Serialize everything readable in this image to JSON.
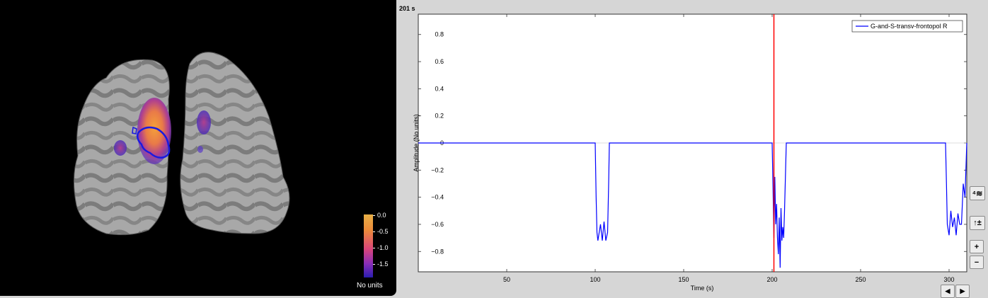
{
  "brain_view": {
    "colorbar": {
      "ticks": [
        "0.0",
        "-0.5",
        "-1.0",
        "-1.5"
      ],
      "units": "No units",
      "colors": [
        "#e8b046",
        "#ec8a3a",
        "#d9457a",
        "#8a2eb8",
        "#2a1eb0"
      ]
    }
  },
  "time_panel": {
    "current_time_label": "201 s"
  },
  "chart_data": {
    "type": "line",
    "xlabel": "Time (s)",
    "ylabel": "Amplitude (No units)",
    "xlim": [
      0,
      310
    ],
    "ylim": [
      -0.95,
      0.95
    ],
    "xticks": [
      50,
      100,
      150,
      200,
      250,
      300
    ],
    "yticks": [
      -0.8,
      -0.6,
      -0.4,
      -0.2,
      0,
      0.2,
      0.4,
      0.6,
      0.8
    ],
    "xtick_labels": [
      "50",
      "100",
      "150",
      "200",
      "250",
      "300"
    ],
    "ytick_labels": [
      "−0.8",
      "−0.6",
      "−0.4",
      "−0.2",
      "0",
      "0.2",
      "0.4",
      "0.6",
      "0.8"
    ],
    "cursor_x": 201,
    "cursor_color": "#ff0000",
    "legend_position": "top-right",
    "series": [
      {
        "name": "G-and-S-transv-frontopol R",
        "color": "#0000ff",
        "x": [
          0,
          100,
          100.5,
          101,
          101.5,
          102,
          103,
          104,
          105,
          106,
          107,
          107.6,
          108,
          200,
          200.5,
          201,
          201.5,
          202,
          202.5,
          203,
          203.5,
          204,
          204.5,
          205,
          205.5,
          206,
          206.5,
          207,
          207.6,
          208,
          298,
          298.5,
          299,
          300,
          301,
          302,
          303,
          304,
          305,
          306,
          307,
          308,
          309,
          310
        ],
        "y": [
          0,
          0,
          -0.4,
          -0.66,
          -0.72,
          -0.68,
          -0.6,
          -0.72,
          -0.58,
          -0.72,
          -0.66,
          -0.3,
          0,
          0,
          -0.35,
          -0.7,
          -0.25,
          -0.6,
          -0.45,
          -0.7,
          -0.82,
          -0.55,
          -0.92,
          -0.48,
          -0.72,
          -0.62,
          -0.7,
          -0.5,
          -0.2,
          0,
          0,
          -0.3,
          -0.6,
          -0.68,
          -0.5,
          -0.62,
          -0.55,
          -0.68,
          -0.52,
          -0.6,
          -0.6,
          -0.3,
          -0.4,
          0
        ]
      }
    ]
  },
  "controls": {
    "scale_button": "⁴≋",
    "autoscale_button": "↑±",
    "zoom_in": "+",
    "zoom_out": "−",
    "scroll_left": "◀",
    "scroll_right": "▶"
  }
}
